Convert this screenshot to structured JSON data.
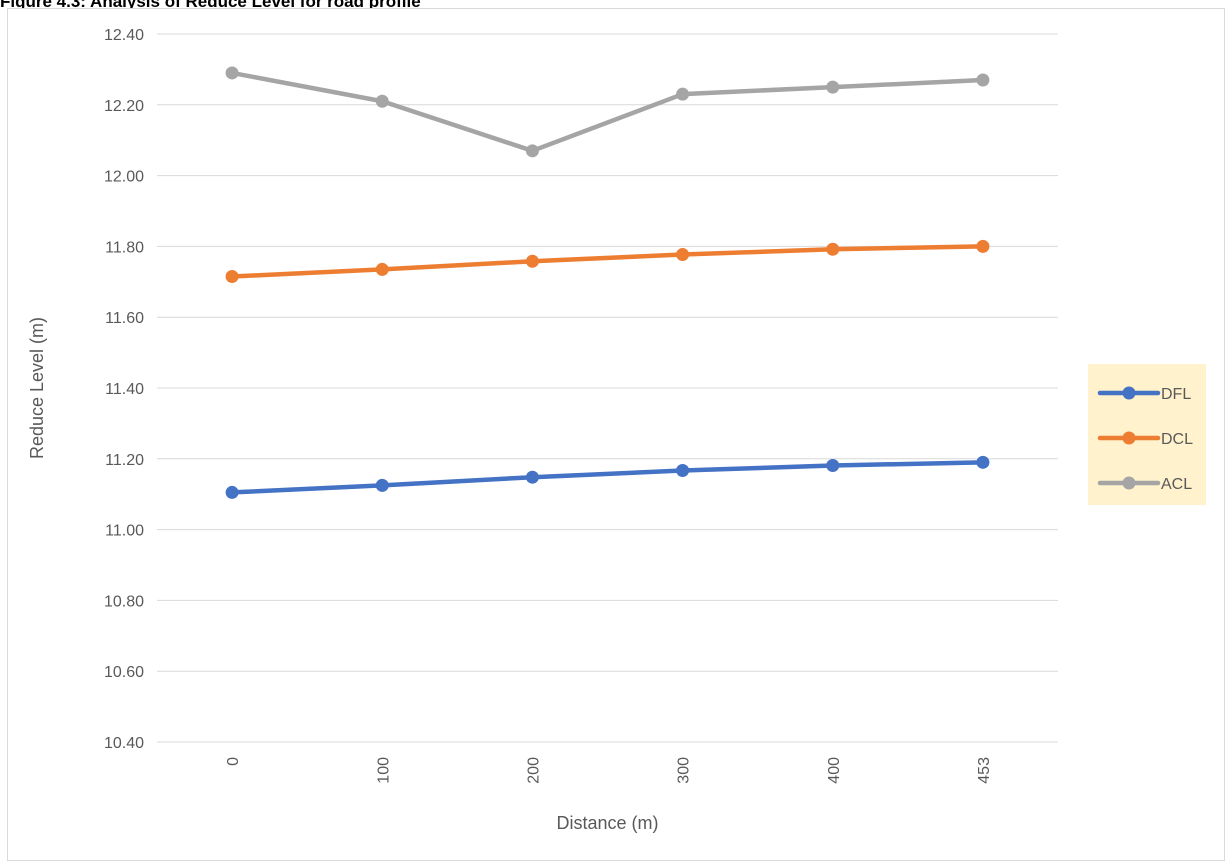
{
  "caption": "Figure 4.3: Analysis of Reduce Level for road profile",
  "chart_data": {
    "type": "line",
    "x": [
      "0",
      "100",
      "200",
      "300",
      "400",
      "453"
    ],
    "xlabel": "Distance (m)",
    "ylabel": "Reduce Level (m)",
    "ylim": [
      10.4,
      12.4
    ],
    "ytick_step": 0.2,
    "ytick_labels": [
      "10.40",
      "10.60",
      "10.80",
      "11.00",
      "11.20",
      "11.40",
      "11.60",
      "11.80",
      "12.00",
      "12.20",
      "12.40"
    ],
    "grid": true,
    "legend_position": "right",
    "legend_background": "#fff2cc",
    "series": [
      {
        "name": "DFL",
        "color": "#4472c4",
        "values": [
          11.105,
          11.125,
          11.148,
          11.167,
          11.181,
          11.19
        ]
      },
      {
        "name": "DCL",
        "color": "#ed7d31",
        "values": [
          11.715,
          11.735,
          11.758,
          11.777,
          11.792,
          11.8
        ]
      },
      {
        "name": "ACL",
        "color": "#a5a5a5",
        "values": [
          12.29,
          12.21,
          12.07,
          12.23,
          12.25,
          12.27
        ]
      }
    ]
  }
}
